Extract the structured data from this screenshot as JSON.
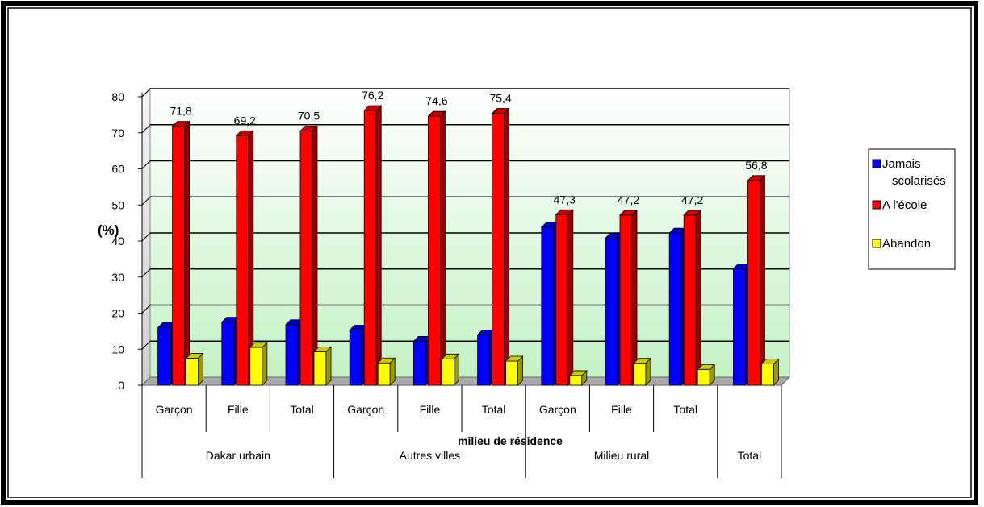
{
  "chart_data": {
    "type": "bar",
    "title": "",
    "ylabel": "(%)",
    "xlabel": "milieu de résidence",
    "ylim": [
      0,
      80
    ],
    "yticks": [
      0,
      10,
      20,
      30,
      40,
      50,
      60,
      70,
      80
    ],
    "grid": true,
    "legend_position": "right",
    "groups": [
      {
        "label": "Dakar urbain",
        "categories": [
          "Garçon",
          "Fille",
          "Total"
        ]
      },
      {
        "label": "Autres villes",
        "categories": [
          "Garçon",
          "Fille",
          "Total"
        ]
      },
      {
        "label": "Milieu rural",
        "categories": [
          "Garçon",
          "Fille",
          "Total"
        ]
      },
      {
        "label": "Total",
        "categories": [
          ""
        ]
      }
    ],
    "categories": [
      "Garçon",
      "Fille",
      "Total",
      "Garçon",
      "Fille",
      "Total",
      "Garçon",
      "Fille",
      "Total",
      ""
    ],
    "series": [
      {
        "name": "Jamais scolarisés",
        "legend_lines": [
          "Jamais",
          "scolarisés"
        ],
        "color": "#0000ff",
        "values": [
          16,
          17.5,
          16.8,
          15.3,
          12.2,
          14,
          43.8,
          40.8,
          42.2,
          32.3
        ]
      },
      {
        "name": "A l'école",
        "legend_lines": [
          "A l'école"
        ],
        "color": "#ff0000",
        "values": [
          71.8,
          69.2,
          70.5,
          76.2,
          74.6,
          75.4,
          47.3,
          47.2,
          47.2,
          56.8
        ],
        "labels": [
          "71,8",
          "69,2",
          "70,5",
          "76,2",
          "74,6",
          "75,4",
          "47,3",
          "47,2",
          "47,2",
          "56,8"
        ]
      },
      {
        "name": "Abandon",
        "legend_lines": [
          "Abandon"
        ],
        "color": "#ffff00",
        "values": [
          7.5,
          10.5,
          9.3,
          6.2,
          7.3,
          6.7,
          2.7,
          6.1,
          4.4,
          5.9
        ]
      }
    ]
  }
}
